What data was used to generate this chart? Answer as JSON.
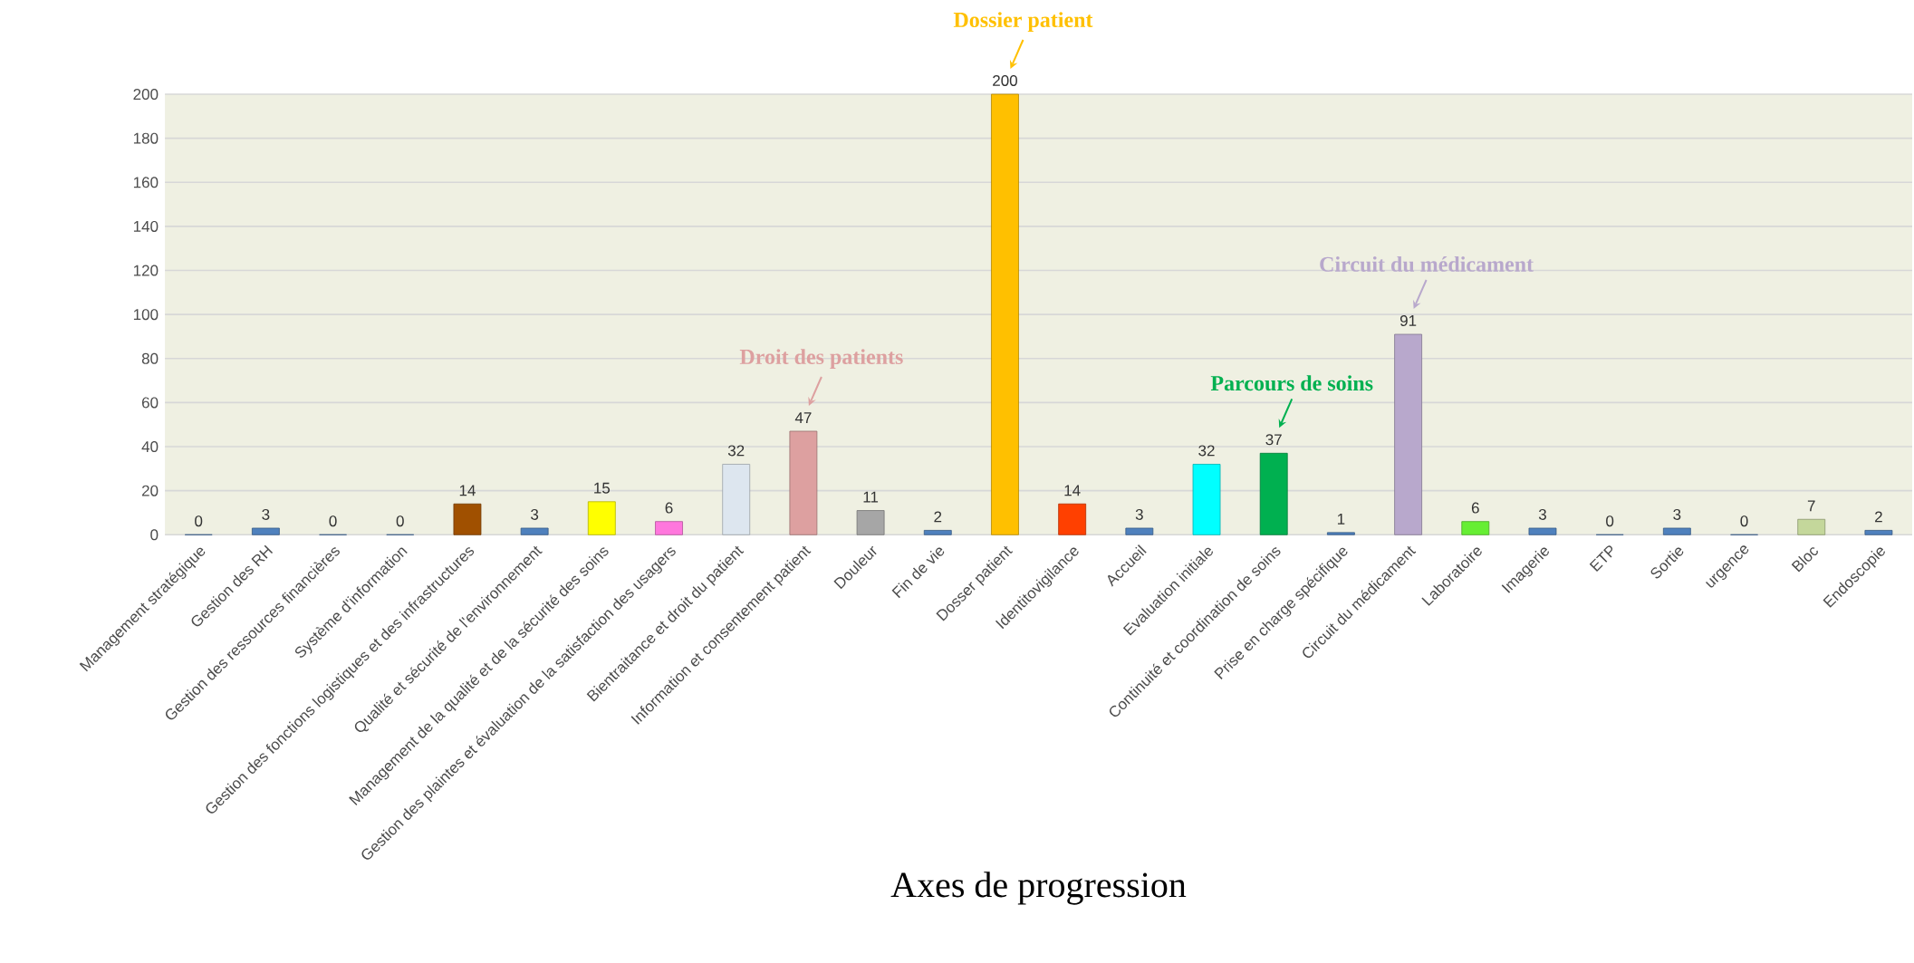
{
  "chart_data": {
    "type": "bar",
    "xlabel": "Axes de progression",
    "categories": [
      "Management stratégique",
      "Gestion des RH",
      "Gestion des ressources financières",
      "Système d'information",
      "Gestion des fonctions logistiques et des infrastructures",
      "Qualité et sécurité de l'environnement",
      "Management de la qualité et de la sécurité des soins",
      "Gestion des plaintes et évaluation de la satisfaction des usagers",
      "Bientraitance et droit du patient",
      "Information et consentement patient",
      "Douleur",
      "Fin de vie",
      "Dosser patient",
      "Identitovigilance",
      "Accueil",
      "Evaluation initiale",
      "Continuité et coordination de soins",
      "Prise en charge spécifique",
      "Circuit du médicament",
      "Laboratoire",
      "Imagerie",
      "ETP",
      "Sortie",
      "urgence",
      "Bloc",
      "Endoscopie"
    ],
    "values": [
      0,
      3,
      0,
      0,
      14,
      3,
      15,
      6,
      32,
      47,
      11,
      2,
      200,
      14,
      3,
      32,
      37,
      1,
      91,
      6,
      3,
      0,
      3,
      0,
      7,
      2
    ],
    "colors": [
      "#4f81bd",
      "#4f81bd",
      "#4f81bd",
      "#4f81bd",
      "#a05000",
      "#4f81bd",
      "#ffff00",
      "#ff77dd",
      "#dde6ef",
      "#dda0a0",
      "#a6a6a6",
      "#4f81bd",
      "#ffc000",
      "#ff4000",
      "#4f81bd",
      "#00ffff",
      "#00b050",
      "#4f81bd",
      "#b8a8cc",
      "#66ee33",
      "#4f81bd",
      "#4f81bd",
      "#4f81bd",
      "#4f81bd",
      "#c4d79b",
      "#4f81bd"
    ],
    "data_labels": true,
    "ylim": [
      0,
      200
    ],
    "yticks": [
      0,
      20,
      40,
      60,
      80,
      100,
      120,
      140,
      160,
      180,
      200
    ],
    "grid": "y",
    "annotations": [
      {
        "text": "Droit des patients",
        "x": "Information et consentement patient",
        "y": 47
      },
      {
        "text": "Dossier patient",
        "x": "Dosser patient",
        "y": 200
      },
      {
        "text": "Parcours de soins",
        "x": "Continuité et coordination de soins",
        "y": 37
      },
      {
        "text": "Circuit du médicament",
        "x": "Circuit du médicament",
        "y": 91
      }
    ]
  }
}
